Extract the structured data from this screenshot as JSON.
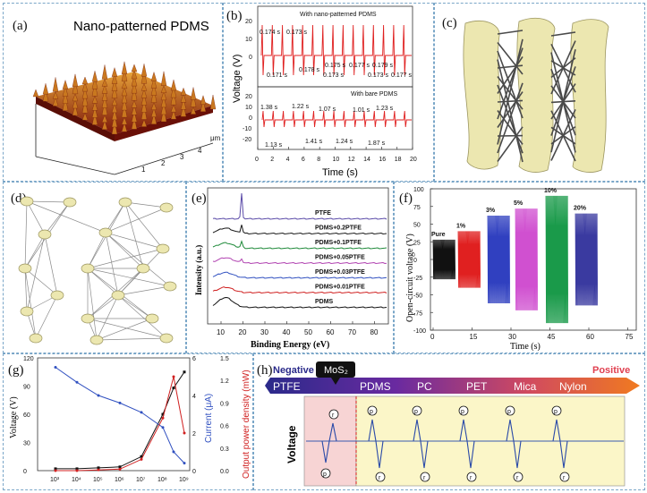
{
  "panel_a": {
    "label": "(a)",
    "title": "Nano-patterned PDMS",
    "axis_ticks": [
      "1",
      "2",
      "3",
      "4"
    ],
    "unit": "μm",
    "surface_color": "#8a1a0c"
  },
  "panel_b": {
    "label": "(b)",
    "ylabel": "Voltage (V)",
    "xlabel": "Time (s)",
    "top_legend": "With nano-patterned PDMS",
    "bottom_legend": "With bare PDMS",
    "top_intervals": [
      "0.174 s",
      "0.173 s",
      "0.171 s",
      "0.178 s",
      "0.175 s",
      "0.173 s",
      "0.177 s",
      "0.179 s",
      "0.173 s",
      "0.177 s"
    ],
    "bottom_intervals": [
      "1.38 s",
      "1.22 s",
      "1.07 s",
      "1.01 s",
      "1.23 s",
      "1.13 s",
      "1.41 s",
      "1.24 s",
      "1.87 s"
    ],
    "y_ticks_top": [
      "0",
      "10",
      "20"
    ],
    "y_ticks_bottom": [
      "-20",
      "-10",
      "0",
      "10",
      "20"
    ],
    "x_ticks": [
      "0",
      "2",
      "4",
      "6",
      "8",
      "10",
      "12",
      "14",
      "16",
      "18",
      "20"
    ],
    "line_color": "#e02020"
  },
  "panel_c": {
    "label": "(c)"
  },
  "panel_d": {
    "label": "(d)"
  },
  "panel_e": {
    "label": "(e)",
    "ylabel": "Intensity (a.u.)",
    "xlabel": "Binding Energy (eV)",
    "x_ticks": [
      "10",
      "20",
      "30",
      "40",
      "50",
      "60",
      "70",
      "80"
    ],
    "series": [
      {
        "name": "PTFE",
        "color": "#5a4aa8"
      },
      {
        "name": "PDMS+0.2PTFE",
        "color": "#1a1a1a"
      },
      {
        "name": "PDMS+0.1PTFE",
        "color": "#1f8a3a"
      },
      {
        "name": "PDMS+0.05PTFE",
        "color": "#b040b0"
      },
      {
        "name": "PDMS+0.03PTFE",
        "color": "#3050c0"
      },
      {
        "name": "PDMS+0.01PTFE",
        "color": "#d02020"
      },
      {
        "name": "PDMS",
        "color": "#111111"
      }
    ]
  },
  "panel_f": {
    "label": "(f)",
    "ylabel": "Open-circuit voltage (V)",
    "xlabel": "Time (s)",
    "y_ticks": [
      "100",
      "75",
      "50",
      "25",
      "0",
      "-25",
      "-50",
      "-75",
      "-100"
    ],
    "x_ticks": [
      "0",
      "15",
      "30",
      "45",
      "60",
      "75"
    ],
    "groups": [
      {
        "name": "Pure",
        "color": "#111111",
        "amp": 28
      },
      {
        "name": "1%",
        "color": "#e02020",
        "amp": 40
      },
      {
        "name": "3%",
        "color": "#3040c0",
        "amp": 62
      },
      {
        "name": "5%",
        "color": "#d050d0",
        "amp": 72
      },
      {
        "name": "10%",
        "color": "#1a9a4a",
        "amp": 90
      },
      {
        "name": "20%",
        "color": "#3a3aa0",
        "amp": 65
      }
    ]
  },
  "panel_g": {
    "label": "(g)",
    "ylabel_left": "Voltage (V)",
    "ylabel_mid": "Current (μA)",
    "ylabel_right": "Output power density (mW)",
    "y_ticks_left": [
      "0",
      "30",
      "60",
      "90",
      "120"
    ],
    "y_ticks_mid": [
      "0",
      "2",
      "4",
      "6"
    ],
    "y_ticks_right": [
      "0.0",
      "0.3",
      "0.6",
      "0.9",
      "1.2",
      "1.5"
    ],
    "x_ticks": [
      "10³",
      "10⁴",
      "10⁵",
      "10⁶",
      "10⁷",
      "10⁸",
      "10⁹"
    ]
  },
  "panel_h": {
    "label": "(h)",
    "negative": "Negative",
    "positive": "Positive",
    "mos2": "MoS₂",
    "materials": [
      "PTFE",
      "PDMS",
      "PC",
      "PET",
      "Mica",
      "Nylon"
    ],
    "ylabel": "Voltage",
    "peak_p": "p",
    "peak_r": "r"
  }
}
